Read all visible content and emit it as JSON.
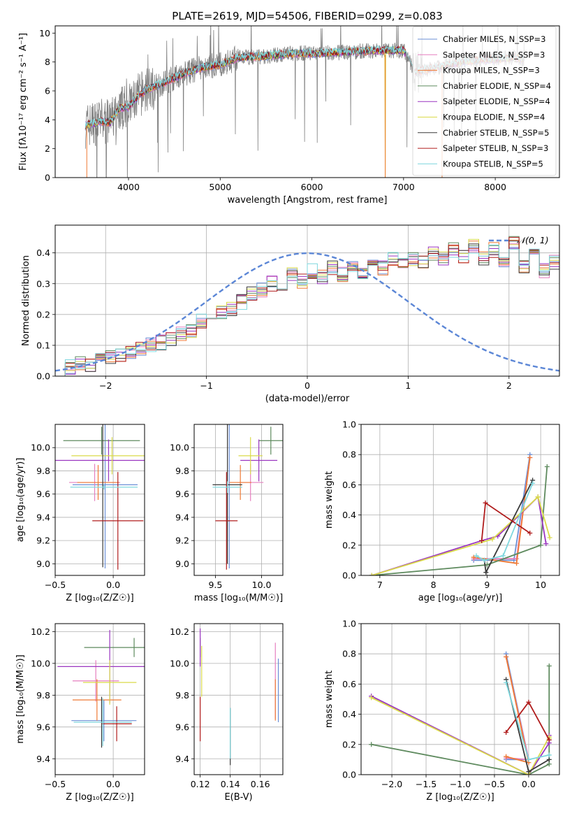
{
  "title": "PLATE=2619, MJD=54506, FIBERID=0299, z=0.083",
  "colors": {
    "Chabrier MILES": "#6b8fd6",
    "Salpeter MILES": "#e67fbf",
    "Kroupa MILES": "#ef7a35",
    "Chabrier ELODIE": "#5e8a5e",
    "Salpeter ELODIE": "#9a35c0",
    "Kroupa ELODIE": "#dada4a",
    "Chabrier STELIB": "#3a3a3a",
    "Salpeter STELIB": "#b01c1c",
    "Kroupa STELIB": "#7fd7de",
    "data": "#808080"
  },
  "chart_data": [
    {
      "id": "spectrum",
      "type": "line",
      "xlabel": "wavelength [Angstrom, rest frame]",
      "ylabel": "Flux [fλ10⁻¹⁷ erg cm⁻² s⁻¹ A⁻¹]",
      "xlim": [
        3200,
        8700
      ],
      "ylim": [
        0,
        10.5
      ],
      "xticks": [
        4000,
        5000,
        6000,
        7000,
        8000
      ],
      "yticks": [
        0,
        2,
        4,
        6,
        8,
        10
      ],
      "grid": false,
      "legend_position": "top-right",
      "legend": [
        "Chabrier MILES, N_SSP=3",
        "Salpeter MILES, N_SSP=3",
        "Kroupa MILES, N_SSP=3",
        "Chabrier ELODIE, N_SSP=4",
        "Salpeter ELODIE, N_SSP=4",
        "Kroupa ELODIE, N_SSP=4",
        "Chabrier STELIB, N_SSP=5",
        "Salpeter STELIB, N_SSP=3",
        "Kroupa STELIB, N_SSP=5"
      ],
      "continuum": [
        [
          3530,
          3.6
        ],
        [
          3700,
          3.9
        ],
        [
          3800,
          3.8
        ],
        [
          3900,
          4.8
        ],
        [
          4000,
          4.9
        ],
        [
          4100,
          5.6
        ],
        [
          4200,
          6.1
        ],
        [
          4400,
          6.6
        ],
        [
          4600,
          7.2
        ],
        [
          4800,
          7.6
        ],
        [
          5000,
          7.8
        ],
        [
          5200,
          8.3
        ],
        [
          5500,
          8.4
        ],
        [
          5800,
          8.6
        ],
        [
          6100,
          8.6
        ],
        [
          6400,
          8.7
        ],
        [
          6700,
          8.8
        ],
        [
          7000,
          8.8
        ],
        [
          7130,
          7.3
        ],
        [
          7200,
          7.4
        ],
        [
          7500,
          7.8
        ],
        [
          7700,
          8.1
        ],
        [
          8000,
          8.2
        ],
        [
          8200,
          8.3
        ],
        [
          8300,
          8.2
        ]
      ]
    },
    {
      "id": "residuals",
      "type": "histogram",
      "xlabel": "(data-model)/error",
      "ylabel": "Normed distribution",
      "xlim": [
        -2.5,
        2.5
      ],
      "ylim": [
        0,
        0.49
      ],
      "xticks": [
        -2,
        -1,
        0,
        1,
        2
      ],
      "yticks": [
        0.0,
        0.1,
        0.2,
        0.3,
        0.4
      ],
      "grid": true,
      "legend_position": "top-right",
      "legend": [
        "𝒩(0, 1)"
      ],
      "bin_width": 0.1,
      "bin_start": -2.5,
      "values": [
        0.02,
        0.03,
        0.04,
        0.04,
        0.05,
        0.06,
        0.07,
        0.08,
        0.09,
        0.1,
        0.11,
        0.12,
        0.14,
        0.15,
        0.18,
        0.19,
        0.21,
        0.22,
        0.24,
        0.27,
        0.28,
        0.3,
        0.29,
        0.33,
        0.31,
        0.34,
        0.32,
        0.35,
        0.33,
        0.36,
        0.34,
        0.37,
        0.35,
        0.38,
        0.36,
        0.38,
        0.37,
        0.4,
        0.38,
        0.41,
        0.39,
        0.42,
        0.38,
        0.41,
        0.37,
        0.43,
        0.36,
        0.4,
        0.34,
        0.37,
        0.33,
        0.34,
        0.3,
        0.32,
        0.28,
        0.3,
        0.25,
        0.27,
        0.24,
        0.22,
        0.2,
        0.19,
        0.17,
        0.15,
        0.13,
        0.12,
        0.11,
        0.1,
        0.1,
        0.09,
        0.08,
        0.07,
        0.07,
        0.06,
        0.05,
        0.05,
        0.04,
        0.04,
        0.03,
        0.03
      ]
    },
    {
      "id": "age_vs_Z",
      "type": "errorbar",
      "xlabel": "Z [log₁₀(Z/Z☉)]",
      "ylabel": "age  [log₁₀(age/yr)]",
      "xlim": [
        -0.5,
        0.27
      ],
      "ylim": [
        8.9,
        10.2
      ],
      "xticks": [
        -0.5,
        0.0
      ],
      "yticks": [
        9.0,
        9.2,
        9.4,
        9.6,
        9.8,
        10.0
      ],
      "grid": true,
      "points": [
        {
          "model": "Chabrier MILES",
          "x": -0.07,
          "xerr": 0.28,
          "y": 9.68,
          "yerr": 0.72
        },
        {
          "model": "Salpeter MILES",
          "x": -0.16,
          "xerr": 0.22,
          "y": 9.7,
          "yerr": 0.16
        },
        {
          "model": "Kroupa MILES",
          "x": -0.13,
          "xerr": 0.18,
          "y": 9.7,
          "yerr": 0.15
        },
        {
          "model": "Chabrier ELODIE",
          "x": -0.1,
          "xerr": 0.33,
          "y": 10.06,
          "yerr": 0.12
        },
        {
          "model": "Salpeter ELODIE",
          "x": -0.04,
          "xerr": 0.47,
          "y": 9.89,
          "yerr": 0.18
        },
        {
          "model": "Kroupa ELODIE",
          "x": -0.01,
          "xerr": 0.35,
          "y": 9.93,
          "yerr": 0.16
        },
        {
          "model": "Chabrier STELIB",
          "x": -0.09,
          "xerr": 0.0,
          "y": 9.65,
          "yerr": 0.68
        },
        {
          "model": "Salpeter STELIB",
          "x": 0.04,
          "xerr": 0.22,
          "y": 9.37,
          "yerr": 0.42
        },
        {
          "model": "Kroupa STELIB",
          "x": -0.08,
          "xerr": 0.29,
          "y": 9.66,
          "yerr": 0.02
        }
      ]
    },
    {
      "id": "age_vs_mass",
      "type": "errorbar",
      "xlabel": "mass [log₁₀(M/M☉)]",
      "ylabel": "",
      "xlim": [
        9.27,
        10.23
      ],
      "ylim": [
        8.9,
        10.2
      ],
      "xticks": [
        9.5,
        10.0
      ],
      "yticks": [
        9.0,
        9.2,
        9.4,
        9.6,
        9.8,
        10.0
      ],
      "grid": true,
      "points": [
        {
          "model": "Chabrier MILES",
          "x": 9.65,
          "xerr": 0.0,
          "y": 9.68,
          "yerr": 0.72
        },
        {
          "model": "Salpeter MILES",
          "x": 9.88,
          "xerr": 0.14,
          "y": 9.7,
          "yerr": 0.16
        },
        {
          "model": "Kroupa MILES",
          "x": 9.77,
          "xerr": 0.12,
          "y": 9.7,
          "yerr": 0.15
        },
        {
          "model": "Chabrier ELODIE",
          "x": 10.1,
          "xerr": 0.13,
          "y": 10.06,
          "yerr": 0.12
        },
        {
          "model": "Salpeter ELODIE",
          "x": 9.97,
          "xerr": 0.2,
          "y": 9.89,
          "yerr": 0.18
        },
        {
          "model": "Kroupa ELODIE",
          "x": 9.88,
          "xerr": 0.13,
          "y": 9.93,
          "yerr": 0.16
        },
        {
          "model": "Chabrier STELIB",
          "x": 9.63,
          "xerr": 0.16,
          "y": 9.68,
          "yerr": 0.68
        },
        {
          "model": "Salpeter STELIB",
          "x": 9.62,
          "xerr": 0.12,
          "y": 9.37,
          "yerr": 0.42
        },
        {
          "model": "Kroupa STELIB",
          "x": 9.63,
          "xerr": 0.16,
          "y": 9.66,
          "yerr": 0.05
        }
      ]
    },
    {
      "id": "weight_vs_age",
      "type": "line",
      "xlabel": "age  [log₁₀(age/yr)]",
      "ylabel": "mass weight",
      "xlim": [
        6.65,
        10.35
      ],
      "ylim": [
        0,
        1.0
      ],
      "xticks": [
        7,
        8,
        9,
        10
      ],
      "yticks": [
        0.0,
        0.2,
        0.4,
        0.6,
        0.8,
        1.0
      ],
      "grid": true,
      "series": [
        {
          "model": "Chabrier MILES",
          "points": [
            [
              8.75,
              0.1
            ],
            [
              9.5,
              0.1
            ],
            [
              9.8,
              0.8
            ]
          ]
        },
        {
          "model": "Salpeter MILES",
          "points": [
            [
              8.75,
              0.11
            ],
            [
              9.55,
              0.11
            ],
            [
              9.8,
              0.78
            ]
          ]
        },
        {
          "model": "Kroupa MILES",
          "points": [
            [
              8.75,
              0.12
            ],
            [
              9.55,
              0.08
            ],
            [
              9.8,
              0.78
            ]
          ]
        },
        {
          "model": "Chabrier ELODIE",
          "points": [
            [
              6.85,
              0.0
            ],
            [
              9.0,
              0.07
            ],
            [
              10.0,
              0.2
            ],
            [
              10.12,
              0.72
            ]
          ]
        },
        {
          "model": "Salpeter ELODIE",
          "points": [
            [
              6.85,
              0.0
            ],
            [
              8.9,
              0.23
            ],
            [
              9.2,
              0.26
            ],
            [
              9.95,
              0.52
            ],
            [
              10.1,
              0.21
            ]
          ]
        },
        {
          "model": "Kroupa ELODIE",
          "points": [
            [
              6.85,
              0.0
            ],
            [
              9.1,
              0.24
            ],
            [
              9.95,
              0.52
            ],
            [
              10.17,
              0.25
            ]
          ]
        },
        {
          "model": "Chabrier STELIB",
          "points": [
            [
              8.95,
              0.1
            ],
            [
              8.98,
              0.02
            ],
            [
              9.85,
              0.63
            ]
          ]
        },
        {
          "model": "Salpeter STELIB",
          "points": [
            [
              8.9,
              0.23
            ],
            [
              8.97,
              0.48
            ],
            [
              9.8,
              0.28
            ]
          ]
        },
        {
          "model": "Kroupa STELIB",
          "points": [
            [
              8.8,
              0.13
            ],
            [
              8.95,
              0.1
            ],
            [
              9.3,
              0.13
            ],
            [
              9.85,
              0.61
            ]
          ]
        }
      ]
    },
    {
      "id": "mass_vs_Z",
      "type": "errorbar",
      "xlabel": "Z [log₁₀(Z/Z☉)]",
      "ylabel": "mass [log₁₀(M/M☉)]",
      "xlim": [
        -0.5,
        0.27
      ],
      "ylim": [
        9.3,
        10.25
      ],
      "xticks": [
        -0.5,
        0.0
      ],
      "yticks": [
        9.4,
        9.6,
        9.8,
        10.0,
        10.2
      ],
      "grid": true,
      "points": [
        {
          "model": "Chabrier MILES",
          "x": -0.08,
          "xerr": 0.28,
          "y": 9.64,
          "yerr": 0.13
        },
        {
          "model": "Salpeter MILES",
          "x": -0.15,
          "xerr": 0.2,
          "y": 9.89,
          "yerr": 0.13
        },
        {
          "model": "Kroupa MILES",
          "x": -0.14,
          "xerr": 0.21,
          "y": 9.77,
          "yerr": 0.13
        },
        {
          "model": "Chabrier ELODIE",
          "x": 0.18,
          "xerr": 0.43,
          "y": 10.1,
          "yerr": 0.06
        },
        {
          "model": "Salpeter ELODIE",
          "x": -0.03,
          "xerr": 0.45,
          "y": 9.98,
          "yerr": 0.23
        },
        {
          "model": "Kroupa ELODIE",
          "x": -0.03,
          "xerr": 0.23,
          "y": 9.88,
          "yerr": 0.14
        },
        {
          "model": "Chabrier STELIB",
          "x": -0.1,
          "xerr": 0.0,
          "y": 9.63,
          "yerr": 0.16
        },
        {
          "model": "Salpeter STELIB",
          "x": 0.03,
          "xerr": 0.13,
          "y": 9.62,
          "yerr": 0.11
        },
        {
          "model": "Kroupa STELIB",
          "x": -0.09,
          "xerr": 0.25,
          "y": 9.63,
          "yerr": 0.15
        }
      ]
    },
    {
      "id": "mass_vs_ebv",
      "type": "errorbar",
      "xlabel": "E(B-V)",
      "ylabel": "",
      "xlim": [
        0.116,
        0.175
      ],
      "ylim": [
        9.3,
        10.25
      ],
      "xticks": [
        0.12,
        0.14,
        0.16
      ],
      "yticks": [
        9.4,
        9.6,
        9.8,
        10.0,
        10.2
      ],
      "grid": true,
      "points": [
        {
          "model": "Chabrier MILES",
          "x": 0.172,
          "xerr": 0.0,
          "y": 9.83,
          "yerr": 0.2
        },
        {
          "model": "Salpeter MILES",
          "x": 0.17,
          "xerr": 0.0,
          "y": 9.89,
          "yerr": 0.24
        },
        {
          "model": "Kroupa MILES",
          "x": 0.17,
          "xerr": 0.0,
          "y": 9.77,
          "yerr": 0.13
        },
        {
          "model": "Chabrier ELODIE",
          "x": 0.12,
          "xerr": 0.0,
          "y": 10.1,
          "yerr": 0.06
        },
        {
          "model": "Salpeter ELODIE",
          "x": 0.12,
          "xerr": 0.0,
          "y": 10.1,
          "yerr": 0.12
        },
        {
          "model": "Kroupa ELODIE",
          "x": 0.121,
          "xerr": 0.0,
          "y": 9.95,
          "yerr": 0.16
        },
        {
          "model": "Chabrier STELIB",
          "x": 0.14,
          "xerr": 0.0,
          "y": 9.54,
          "yerr": 0.18
        },
        {
          "model": "Salpeter STELIB",
          "x": 0.12,
          "xerr": 0.0,
          "y": 9.65,
          "yerr": 0.14
        },
        {
          "model": "Kroupa STELIB",
          "x": 0.14,
          "xerr": 0.0,
          "y": 9.56,
          "yerr": 0.16
        }
      ]
    },
    {
      "id": "weight_vs_Z",
      "type": "line",
      "xlabel": "Z [log₁₀(Z/Z☉)]",
      "ylabel": "mass weight",
      "xlim": [
        -2.45,
        0.45
      ],
      "ylim": [
        0,
        1.0
      ],
      "xticks": [
        -2.0,
        -1.5,
        -1.0,
        -0.5,
        0.0
      ],
      "yticks": [
        0.0,
        0.2,
        0.4,
        0.6,
        0.8,
        1.0
      ],
      "grid": true,
      "series": [
        {
          "model": "Chabrier MILES",
          "points": [
            [
              -0.33,
              0.1
            ],
            [
              0.0,
              0.1
            ],
            [
              -0.33,
              0.8
            ]
          ]
        },
        {
          "model": "Salpeter MILES",
          "points": [
            [
              -0.33,
              0.11
            ],
            [
              0.0,
              0.1
            ],
            [
              -0.33,
              0.78
            ]
          ]
        },
        {
          "model": "Kroupa MILES",
          "points": [
            [
              -0.33,
              0.12
            ],
            [
              0.0,
              0.08
            ],
            [
              -0.33,
              0.78
            ]
          ]
        },
        {
          "model": "Chabrier ELODIE",
          "points": [
            [
              -2.3,
              0.2
            ],
            [
              0.0,
              0.0
            ],
            [
              0.3,
              0.07
            ],
            [
              0.3,
              0.72
            ]
          ]
        },
        {
          "model": "Salpeter ELODIE",
          "points": [
            [
              -2.3,
              0.52
            ],
            [
              0.0,
              0.0
            ],
            [
              0.3,
              0.21
            ],
            [
              0.3,
              0.26
            ]
          ]
        },
        {
          "model": "Kroupa ELODIE",
          "points": [
            [
              -2.3,
              0.51
            ],
            [
              0.0,
              0.0
            ],
            [
              0.3,
              0.25
            ],
            [
              0.3,
              0.24
            ]
          ]
        },
        {
          "model": "Chabrier STELIB",
          "points": [
            [
              -0.33,
              0.63
            ],
            [
              0.0,
              0.02
            ],
            [
              0.3,
              0.1
            ]
          ]
        },
        {
          "model": "Salpeter STELIB",
          "points": [
            [
              -0.33,
              0.28
            ],
            [
              0.0,
              0.48
            ],
            [
              0.3,
              0.23
            ]
          ]
        },
        {
          "model": "Kroupa STELIB",
          "points": [
            [
              -0.33,
              0.61
            ],
            [
              0.0,
              0.1
            ],
            [
              0.3,
              0.13
            ]
          ]
        }
      ]
    }
  ]
}
